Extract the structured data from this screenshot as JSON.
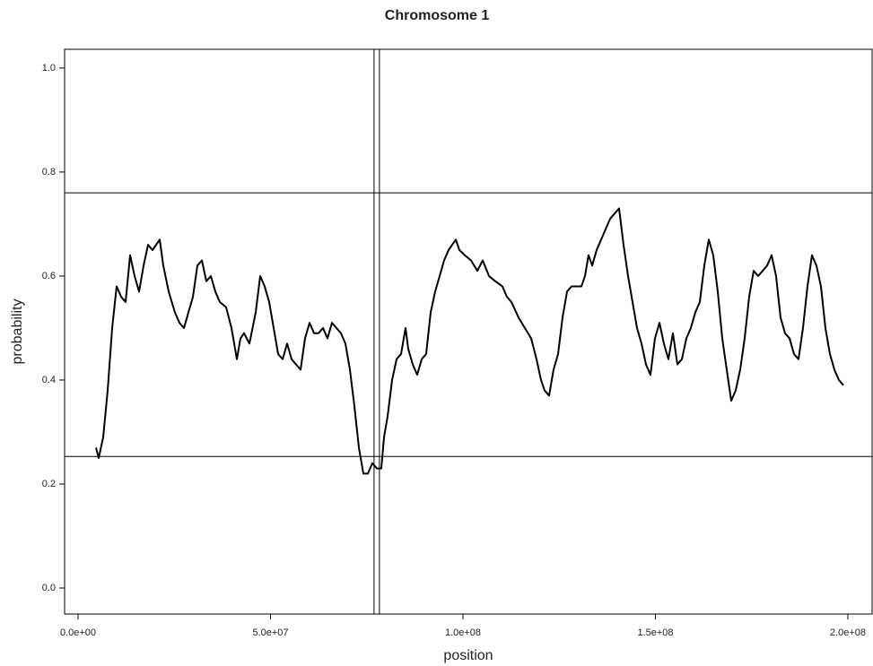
{
  "chart_data": {
    "type": "line",
    "title": "Chromosome 1",
    "x_label": "position",
    "y_label": "probability",
    "x": [
      4660000.0,
      5360000.0,
      6530000.0,
      7690000.0,
      8860000.0,
      10020000.0,
      11190000.0,
      12350000.0,
      13520000.0,
      14690000.0,
      15850000.0,
      17020000.0,
      18180000.0,
      19350000.0,
      21210000.0,
      22140000.0,
      23540000.0,
      25170000.0,
      26340000.0,
      27510000.0,
      28670000.0,
      29840000.0,
      31000000.0,
      32170000.0,
      33330000.0,
      34500000.0,
      35660000.0,
      36830000.0,
      38460000.0,
      39860000.0,
      41260000.0,
      42190000.0,
      43120000.0,
      44520000.0,
      46150000.0,
      47320000.0,
      48480000.0,
      49650000.0,
      50820000.0,
      51980000.0,
      53150000.0,
      54310000.0,
      55480000.0,
      56640000.0,
      57810000.0,
      58970000.0,
      60140000.0,
      61310000.0,
      62470000.0,
      63640000.0,
      64800000.0,
      65970000.0,
      67130000.0,
      68300000.0,
      69460000.0,
      70630000.0,
      71790000.0,
      72960000.0,
      74130000.0,
      75290000.0,
      76460000.0,
      77620000.0,
      78790000.0,
      79490000.0,
      80420000.0,
      81590000.0,
      82750000.0,
      83920000.0,
      85080000.0,
      85780000.0,
      86950000.0,
      88110000.0,
      89280000.0,
      90440000.0,
      91610000.0,
      92770000.0,
      93940000.0,
      95100000.0,
      96270000.0,
      98140000.0,
      99070000.0,
      100470000.0,
      102100000.0,
      103730000.0,
      105130000.0,
      106760000.0,
      108390000.0,
      110260000.0,
      111420000.0,
      112590000.0,
      114450000.0,
      116080000.0,
      117720000.0,
      119110000.0,
      120280000.0,
      121210000.0,
      122380000.0,
      123540000.0,
      124710000.0,
      125870000.0,
      127040000.0,
      128210000.0,
      129370000.0,
      130770000.0,
      131700000.0,
      132630000.0,
      133570000.0,
      134730000.0,
      135900000.0,
      137060000.0,
      138230000.0,
      139390000.0,
      140560000.0,
      141720000.0,
      142890000.0,
      144060000.0,
      145220000.0,
      146390000.0,
      147550000.0,
      148720000.0,
      149880000.0,
      151050000.0,
      152210000.0,
      153380000.0,
      154550000.0,
      155710000.0,
      156880000.0,
      158040000.0,
      159210000.0,
      160370000.0,
      161540000.0,
      162700000.0,
      163870000.0,
      165030000.0,
      166200000.0,
      167370000.0,
      168530000.0,
      169700000.0,
      170860000.0,
      172030000.0,
      173190000.0,
      174360000.0,
      175520000.0,
      176690000.0,
      177860000.0,
      179020000.0,
      180190000.0,
      181350000.0,
      182520000.0,
      183680000.0,
      184850000.0,
      186010000.0,
      187180000.0,
      188340000.0,
      189510000.0,
      190680000.0,
      191840000.0,
      193010000.0,
      194170000.0,
      195340000.0,
      196500000.0,
      197670000.0,
      198830000.0
    ],
    "values": [
      0.27,
      0.25,
      0.29,
      0.38,
      0.5,
      0.58,
      0.56,
      0.55,
      0.64,
      0.6,
      0.57,
      0.62,
      0.66,
      0.65,
      0.67,
      0.62,
      0.57,
      0.53,
      0.51,
      0.5,
      0.53,
      0.56,
      0.62,
      0.63,
      0.59,
      0.6,
      0.57,
      0.55,
      0.54,
      0.5,
      0.44,
      0.48,
      0.49,
      0.47,
      0.53,
      0.6,
      0.58,
      0.55,
      0.5,
      0.45,
      0.44,
      0.47,
      0.44,
      0.43,
      0.42,
      0.48,
      0.51,
      0.49,
      0.49,
      0.5,
      0.48,
      0.51,
      0.5,
      0.49,
      0.47,
      0.42,
      0.35,
      0.27,
      0.22,
      0.22,
      0.24,
      0.23,
      0.23,
      0.29,
      0.33,
      0.4,
      0.44,
      0.45,
      0.5,
      0.46,
      0.43,
      0.41,
      0.44,
      0.45,
      0.53,
      0.57,
      0.6,
      0.63,
      0.65,
      0.67,
      0.65,
      0.64,
      0.63,
      0.61,
      0.63,
      0.6,
      0.59,
      0.58,
      0.56,
      0.55,
      0.52,
      0.5,
      0.48,
      0.44,
      0.4,
      0.38,
      0.37,
      0.42,
      0.45,
      0.52,
      0.57,
      0.58,
      0.58,
      0.58,
      0.6,
      0.64,
      0.62,
      0.65,
      0.67,
      0.69,
      0.71,
      0.72,
      0.73,
      0.66,
      0.6,
      0.55,
      0.5,
      0.47,
      0.43,
      0.41,
      0.48,
      0.51,
      0.47,
      0.44,
      0.49,
      0.43,
      0.44,
      0.48,
      0.5,
      0.53,
      0.55,
      0.62,
      0.67,
      0.64,
      0.57,
      0.48,
      0.42,
      0.36,
      0.38,
      0.42,
      0.48,
      0.56,
      0.61,
      0.6,
      0.61,
      0.62,
      0.64,
      0.6,
      0.52,
      0.49,
      0.48,
      0.45,
      0.44,
      0.5,
      0.58,
      0.64,
      0.62,
      0.58,
      0.5,
      0.45,
      0.42,
      0.4,
      0.39
    ],
    "color": "#000000",
    "xlim": [
      -3500000.0,
      206300000.0
    ],
    "ylim": [
      -0.05,
      1.036
    ],
    "xticks": [
      {
        "value": 0,
        "label": "0.0e+00"
      },
      {
        "value": 50000000.0,
        "label": "5.0e+07"
      },
      {
        "value": 100000000.0,
        "label": "1.0e+08"
      },
      {
        "value": 150000000.0,
        "label": "1.5e+08"
      },
      {
        "value": 200000000.0,
        "label": "2.0e+08"
      }
    ],
    "yticks": [
      {
        "value": 0,
        "label": "0.0"
      },
      0.2,
      0.4,
      0.6,
      0.8,
      {
        "value": 1,
        "label": "1.0"
      }
    ],
    "hlines": [
      0.76,
      0.253
    ],
    "vlines": [
      76900000.0,
      78300000.0
    ]
  }
}
